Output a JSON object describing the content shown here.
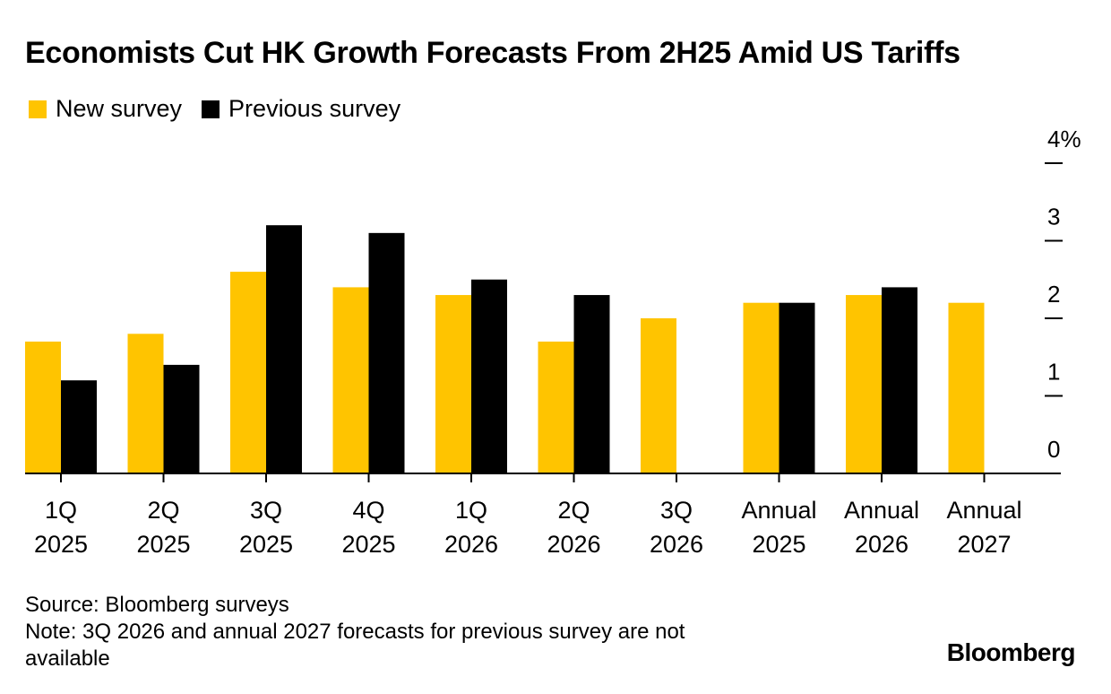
{
  "title": "Economists Cut HK Growth Forecasts From 2H25 Amid US Tariffs",
  "legend": [
    {
      "label": "New survey",
      "color": "#FFC400"
    },
    {
      "label": "Previous survey",
      "color": "#000000"
    }
  ],
  "chart_data": {
    "type": "bar",
    "title": "Economists Cut HK Growth Forecasts From 2H25 Amid US Tariffs",
    "xlabel": "",
    "ylabel": "",
    "ylim": [
      0,
      4
    ],
    "y_ticks": [
      0,
      1,
      2,
      3,
      4
    ],
    "y_tick_labels": [
      "0",
      "1",
      "2",
      "3",
      "4%"
    ],
    "y_axis_position": "right",
    "grid": false,
    "legend_position": "top-left",
    "categories": [
      [
        "1Q",
        "2025"
      ],
      [
        "2Q",
        "2025"
      ],
      [
        "3Q",
        "2025"
      ],
      [
        "4Q",
        "2025"
      ],
      [
        "1Q",
        "2026"
      ],
      [
        "2Q",
        "2026"
      ],
      [
        "3Q",
        "2026"
      ],
      [
        "Annual",
        "2025"
      ],
      [
        "Annual",
        "2026"
      ],
      [
        "Annual",
        "2027"
      ]
    ],
    "series": [
      {
        "name": "New survey",
        "color": "#FFC400",
        "values": [
          1.7,
          1.8,
          2.6,
          2.4,
          2.3,
          1.7,
          2.0,
          2.2,
          2.3,
          2.2
        ]
      },
      {
        "name": "Previous survey",
        "color": "#000000",
        "values": [
          1.2,
          1.4,
          3.2,
          3.1,
          2.5,
          2.3,
          null,
          2.2,
          2.4,
          null
        ]
      }
    ]
  },
  "footer": {
    "source": "Source: Bloomberg surveys",
    "note": "Note: 3Q 2026 and annual 2027 forecasts for previous survey are not available"
  },
  "brand": "Bloomberg"
}
